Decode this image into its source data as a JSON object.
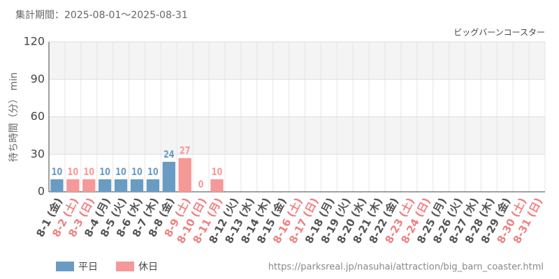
{
  "chart_data": {
    "type": "bar",
    "period_label": "集計期間：2025-08-01～2025-08-31",
    "title": "ビッグバーンコースター",
    "y_label": "待ち時間（分） min",
    "source": "https://parksreal.jp/nasuhai/attraction/big_barn_coaster.html",
    "categories": [
      "8-1 (金)",
      "8-2 (土)",
      "8-3 (日)",
      "8-4 (月)",
      "8-5 (火)",
      "8-6 (水)",
      "8-7 (木)",
      "8-8 (金)",
      "8-9 (土)",
      "8-10 (日)",
      "8-11 (月)",
      "8-12 (火)",
      "8-13 (水)",
      "8-14 (木)",
      "8-15 (金)",
      "8-16 (土)",
      "8-17 (日)",
      "8-18 (月)",
      "8-19 (火)",
      "8-20 (水)",
      "8-21 (木)",
      "8-22 (金)",
      "8-23 (土)",
      "8-24 (日)",
      "8-25 (月)",
      "8-26 (火)",
      "8-27 (水)",
      "8-28 (木)",
      "8-29 (金)",
      "8-30 (土)",
      "8-31 (日)"
    ],
    "category_colors": [
      "#555555",
      "#f08080",
      "#f08080",
      "#555555",
      "#555555",
      "#555555",
      "#555555",
      "#555555",
      "#f08080",
      "#f08080",
      "#f08080",
      "#555555",
      "#555555",
      "#555555",
      "#555555",
      "#f08080",
      "#f08080",
      "#555555",
      "#555555",
      "#555555",
      "#555555",
      "#555555",
      "#f08080",
      "#f08080",
      "#555555",
      "#555555",
      "#555555",
      "#555555",
      "#555555",
      "#f08080",
      "#f08080"
    ],
    "series": [
      {
        "name": "平日",
        "color": "#6a9bc3",
        "values": [
          10,
          null,
          null,
          10,
          10,
          10,
          10,
          24,
          null,
          null,
          null,
          null,
          null,
          null,
          null,
          null,
          null,
          null,
          null,
          null,
          null,
          null,
          null,
          null,
          null,
          null,
          null,
          null,
          null,
          null,
          null
        ]
      },
      {
        "name": "休日",
        "color": "#f59898",
        "values": [
          null,
          10,
          10,
          null,
          null,
          null,
          null,
          null,
          27,
          0,
          10,
          null,
          null,
          null,
          null,
          null,
          null,
          null,
          null,
          null,
          null,
          null,
          null,
          null,
          null,
          null,
          null,
          null,
          null,
          null,
          null
        ]
      }
    ],
    "ylim": [
      0,
      120
    ],
    "yticks": [
      0,
      30,
      60,
      90,
      120
    ],
    "grid": true
  }
}
